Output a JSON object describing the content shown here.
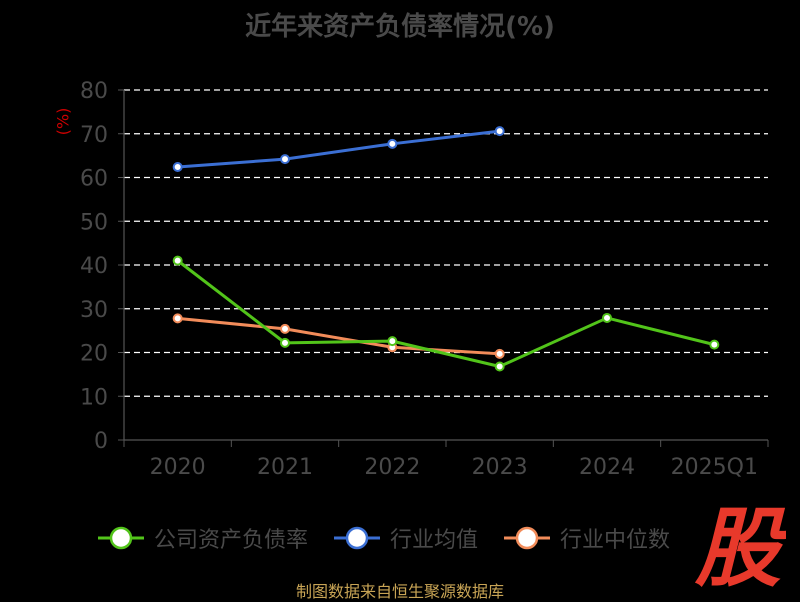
{
  "chart_data": {
    "type": "line",
    "title": "近年来资产负债率情况(%)",
    "ylabel": "(%)",
    "xlabel": "",
    "categories": [
      "2020",
      "2021",
      "2022",
      "2023",
      "2024",
      "2025Q1"
    ],
    "ylim": [
      0,
      80
    ],
    "yticks": [
      0,
      10,
      20,
      30,
      40,
      50,
      60,
      70,
      80
    ],
    "grid": true,
    "legend_position": "bottom",
    "series": [
      {
        "name": "公司资产负债率",
        "color": "#52c41a",
        "values": [
          41.0,
          22.2,
          22.6,
          16.8,
          27.9,
          21.8
        ]
      },
      {
        "name": "行业均值",
        "color": "#3b6fd4",
        "values": [
          62.4,
          64.2,
          67.7,
          70.6,
          null,
          null
        ]
      },
      {
        "name": "行业中位数",
        "color": "#f28c5a",
        "values": [
          27.8,
          25.4,
          21.2,
          19.7,
          null,
          null
        ]
      }
    ]
  },
  "footer": {
    "source": "制图数据来自恒生聚源数据库"
  },
  "brand": {
    "text": "股"
  }
}
